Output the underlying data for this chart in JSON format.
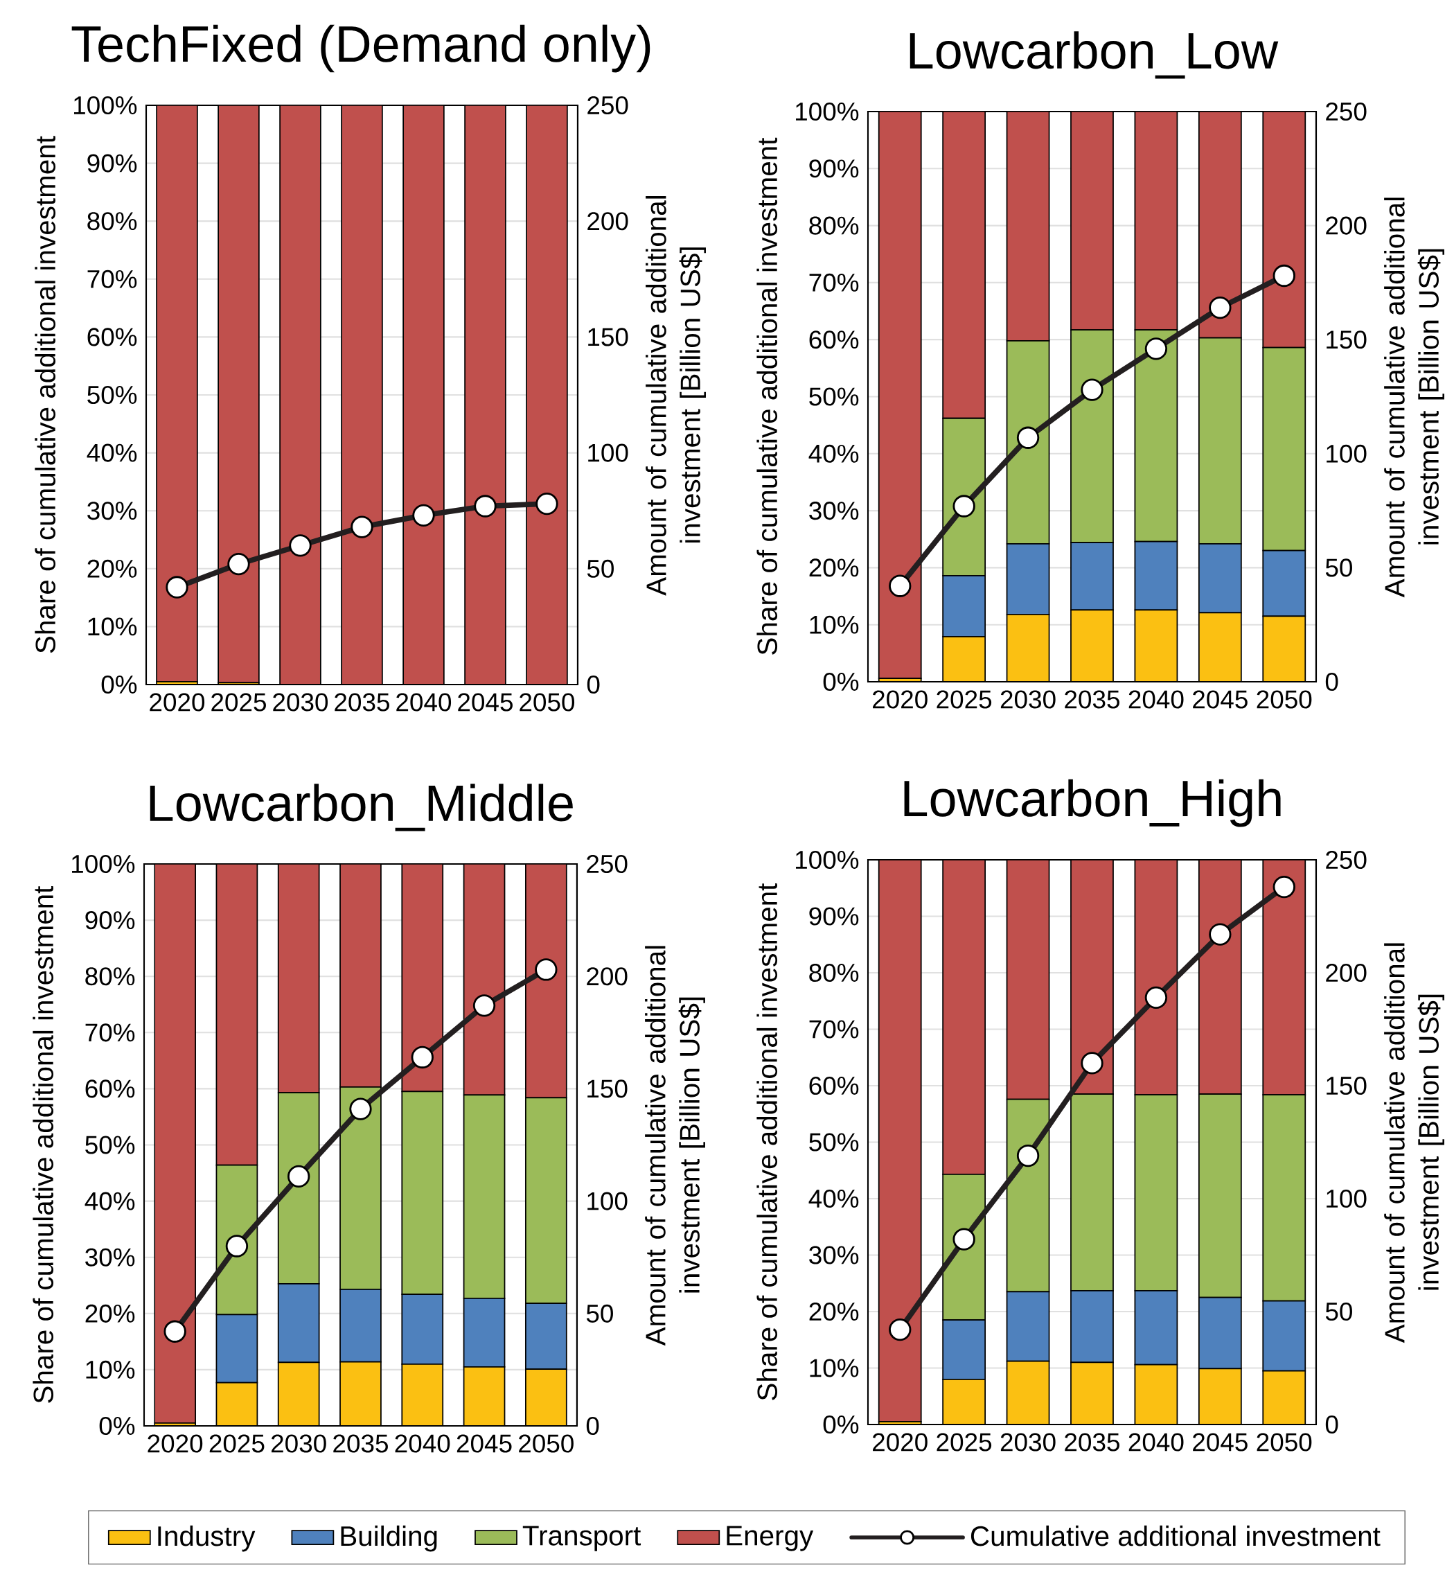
{
  "chart_data": [
    {
      "type": "bar",
      "title": "TechFixed (Demand only)",
      "ylabel": "Share of cumulative additional investment",
      "y2label": "Amount of cumulative additional investment [Billion US$]",
      "categories": [
        "2020",
        "2025",
        "2030",
        "2035",
        "2040",
        "2045",
        "2050"
      ],
      "stacked": true,
      "grid": "y",
      "legend": false,
      "ylim": [
        0,
        100
      ],
      "yticks": [
        {
          "value": 0,
          "label": "0%"
        },
        {
          "value": 10,
          "label": "10%"
        },
        {
          "value": 20,
          "label": "20%"
        },
        {
          "value": 30,
          "label": "30%"
        },
        {
          "value": 40,
          "label": "40%"
        },
        {
          "value": 50,
          "label": "50%"
        },
        {
          "value": 60,
          "label": "60%"
        },
        {
          "value": 70,
          "label": "70%"
        },
        {
          "value": 80,
          "label": "80%"
        },
        {
          "value": 90,
          "label": "90%"
        },
        {
          "value": 100,
          "label": "100%"
        }
      ],
      "y2lim": [
        0,
        250
      ],
      "y2ticks": [
        0,
        50,
        100,
        150,
        200,
        250
      ],
      "series": [
        {
          "color": "#fbc012",
          "values": [
            0.5,
            0.3,
            0,
            0,
            0,
            0,
            0
          ]
        },
        {
          "color": "#4f81bd",
          "values": [
            0,
            0,
            0,
            0,
            0,
            0,
            0
          ]
        },
        {
          "color": "#9bbb59",
          "values": [
            0,
            0,
            0,
            0,
            0,
            0,
            0
          ]
        },
        {
          "color": "#c0504d",
          "values": [
            99.5,
            99.7,
            100,
            100,
            100,
            100,
            100
          ]
        },
        {
          "type": "line",
          "axis": "y2",
          "marker": "circle",
          "color": "#231f20",
          "values": [
            42,
            52,
            60,
            68,
            73,
            77,
            78
          ]
        }
      ]
    },
    {
      "type": "bar",
      "title": "Lowcarbon_Low",
      "ylabel": "Share of cumulative additional investment",
      "y2label": "Amount of cumulative additional investment [Billion US$]",
      "categories": [
        "2020",
        "2025",
        "2030",
        "2035",
        "2040",
        "2045",
        "2050"
      ],
      "stacked": true,
      "grid": "y",
      "legend": false,
      "ylim": [
        0,
        100
      ],
      "yticks": [
        {
          "value": 0,
          "label": "0%"
        },
        {
          "value": 10,
          "label": "10%"
        },
        {
          "value": 20,
          "label": "20%"
        },
        {
          "value": 30,
          "label": "30%"
        },
        {
          "value": 40,
          "label": "40%"
        },
        {
          "value": 50,
          "label": "50%"
        },
        {
          "value": 60,
          "label": "60%"
        },
        {
          "value": 70,
          "label": "70%"
        },
        {
          "value": 80,
          "label": "80%"
        },
        {
          "value": 90,
          "label": "90%"
        },
        {
          "value": 100,
          "label": "100%"
        }
      ],
      "y2lim": [
        0,
        250
      ],
      "y2ticks": [
        0,
        50,
        100,
        150,
        200,
        250
      ],
      "series": [
        {
          "color": "#fbc012",
          "values": [
            0.6,
            7.9,
            11.8,
            12.6,
            12.6,
            12.1,
            11.5
          ]
        },
        {
          "color": "#4f81bd",
          "values": [
            0,
            10.7,
            12.4,
            11.8,
            12.0,
            12.1,
            11.5
          ]
        },
        {
          "color": "#9bbb59",
          "values": [
            0,
            27.6,
            35.6,
            37.3,
            37.1,
            36.1,
            35.6
          ]
        },
        {
          "color": "#c0504d",
          "values": [
            99.4,
            53.8,
            40.2,
            38.3,
            38.3,
            39.7,
            41.4
          ]
        },
        {
          "type": "line",
          "axis": "y2",
          "marker": "circle",
          "color": "#231f20",
          "values": [
            42,
            77,
            107,
            128,
            146,
            164,
            178
          ]
        }
      ]
    },
    {
      "type": "bar",
      "title": "Lowcarbon_Middle",
      "ylabel": "Share of cumulative additional investment",
      "y2label": "Amount of cumulative additional investment [Billion US$]",
      "categories": [
        "2020",
        "2025",
        "2030",
        "2035",
        "2040",
        "2045",
        "2050"
      ],
      "stacked": true,
      "grid": "y",
      "legend": false,
      "ylim": [
        0,
        100
      ],
      "yticks": [
        {
          "value": 0,
          "label": "0%"
        },
        {
          "value": 10,
          "label": "10%"
        },
        {
          "value": 20,
          "label": "20%"
        },
        {
          "value": 30,
          "label": "30%"
        },
        {
          "value": 40,
          "label": "40%"
        },
        {
          "value": 50,
          "label": "50%"
        },
        {
          "value": 60,
          "label": "60%"
        },
        {
          "value": 70,
          "label": "70%"
        },
        {
          "value": 80,
          "label": "80%"
        },
        {
          "value": 90,
          "label": "90%"
        },
        {
          "value": 100,
          "label": "100%"
        }
      ],
      "y2lim": [
        0,
        250
      ],
      "y2ticks": [
        0,
        50,
        100,
        150,
        200,
        250
      ],
      "series": [
        {
          "color": "#fbc012",
          "values": [
            0.5,
            7.7,
            11.3,
            11.4,
            11.0,
            10.5,
            10.1
          ]
        },
        {
          "color": "#4f81bd",
          "values": [
            0,
            12.1,
            14.0,
            12.9,
            12.4,
            12.2,
            11.7
          ]
        },
        {
          "color": "#9bbb59",
          "values": [
            0,
            26.6,
            34.0,
            36.0,
            36.1,
            36.2,
            36.6
          ]
        },
        {
          "color": "#c0504d",
          "values": [
            99.5,
            53.6,
            40.7,
            39.7,
            40.5,
            41.1,
            41.6
          ]
        },
        {
          "type": "line",
          "axis": "y2",
          "marker": "circle",
          "color": "#231f20",
          "values": [
            42,
            80,
            111,
            141,
            164,
            187,
            203
          ]
        }
      ]
    },
    {
      "type": "bar",
      "title": "Lowcarbon_High",
      "ylabel": "Share of cumulative additional investment",
      "y2label": "Amount of cumulative additional investment [Billion US$]",
      "categories": [
        "2020",
        "2025",
        "2030",
        "2035",
        "2040",
        "2045",
        "2050"
      ],
      "stacked": true,
      "grid": "y",
      "legend": "bottom",
      "ylim": [
        0,
        100
      ],
      "yticks": [
        {
          "value": 0,
          "label": "0%"
        },
        {
          "value": 10,
          "label": "10%"
        },
        {
          "value": 20,
          "label": "20%"
        },
        {
          "value": 30,
          "label": "30%"
        },
        {
          "value": 40,
          "label": "40%"
        },
        {
          "value": 50,
          "label": "50%"
        },
        {
          "value": 60,
          "label": "60%"
        },
        {
          "value": 70,
          "label": "70%"
        },
        {
          "value": 80,
          "label": "80%"
        },
        {
          "value": 90,
          "label": "90%"
        },
        {
          "value": 100,
          "label": "100%"
        }
      ],
      "y2lim": [
        0,
        250
      ],
      "y2ticks": [
        0,
        50,
        100,
        150,
        200,
        250
      ],
      "series": [
        {
          "name": "Industry",
          "color": "#fbc012",
          "values": [
            0.5,
            8.0,
            11.2,
            11.0,
            10.6,
            9.9,
            9.5
          ]
        },
        {
          "name": "Building",
          "color": "#4f81bd",
          "values": [
            0,
            10.5,
            12.3,
            12.7,
            13.1,
            12.6,
            12.4
          ]
        },
        {
          "name": "Transport",
          "color": "#9bbb59",
          "values": [
            0,
            25.8,
            34.1,
            34.8,
            34.7,
            36.0,
            36.5
          ]
        },
        {
          "name": "Energy",
          "color": "#c0504d",
          "values": [
            99.5,
            55.7,
            42.4,
            41.5,
            41.6,
            41.5,
            41.6
          ]
        },
        {
          "name": "Cumulative additional investment",
          "type": "line",
          "axis": "y2",
          "marker": "circle",
          "color": "#231f20",
          "values": [
            42,
            82,
            119,
            160,
            189,
            217,
            238
          ]
        }
      ]
    }
  ]
}
